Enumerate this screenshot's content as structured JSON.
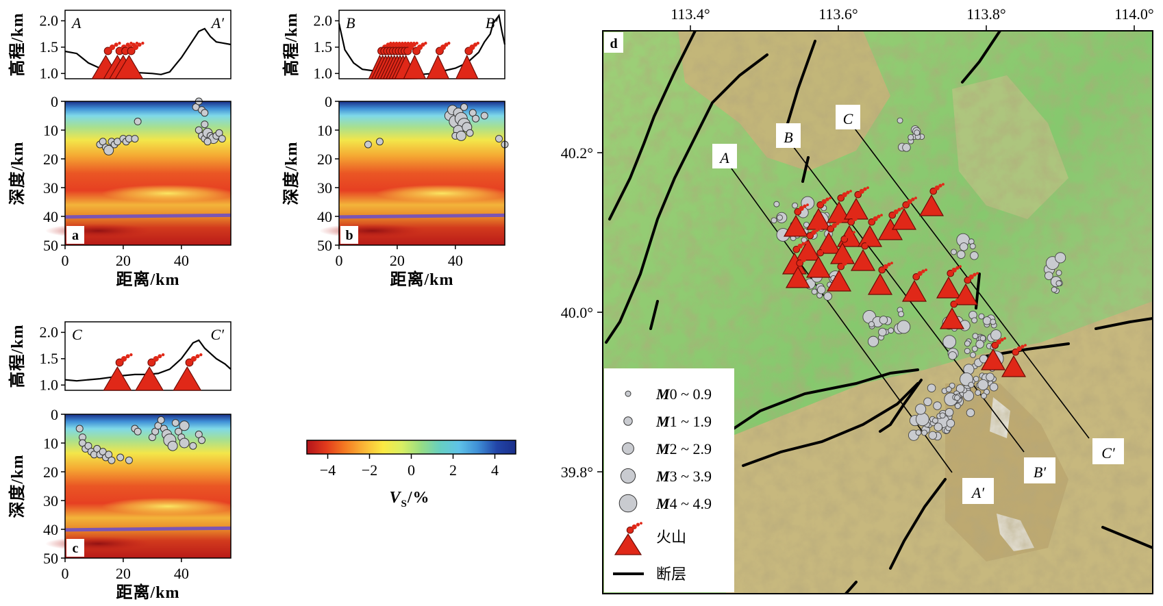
{
  "profiles": [
    {
      "id": "a",
      "panel_label": "a",
      "start": "A",
      "end": "A′",
      "topo": [
        [
          0,
          1.42
        ],
        [
          4,
          1.38
        ],
        [
          8,
          1.2
        ],
        [
          12,
          1.1
        ],
        [
          18,
          1.05
        ],
        [
          24,
          1.02
        ],
        [
          30,
          1.0
        ],
        [
          33,
          0.98
        ],
        [
          36,
          1.03
        ],
        [
          40,
          1.3
        ],
        [
          43,
          1.55
        ],
        [
          46,
          1.8
        ],
        [
          48,
          1.85
        ],
        [
          50,
          1.7
        ],
        [
          52,
          1.6
        ],
        [
          54,
          1.58
        ],
        [
          57,
          1.55
        ]
      ],
      "volcanoes": [
        14,
        18,
        20,
        22
      ],
      "quakes": [
        [
          12,
          15,
          1
        ],
        [
          13,
          14,
          1
        ],
        [
          14,
          16,
          1
        ],
        [
          15,
          17,
          2
        ],
        [
          16,
          14,
          1
        ],
        [
          17,
          15,
          1
        ],
        [
          18,
          14,
          1
        ],
        [
          20,
          13,
          1
        ],
        [
          21,
          14,
          1
        ],
        [
          22,
          13,
          1
        ],
        [
          24,
          13,
          1
        ],
        [
          25,
          7,
          1
        ],
        [
          45,
          2,
          1
        ],
        [
          46,
          0,
          1
        ],
        [
          47,
          3,
          1
        ],
        [
          48,
          4,
          1
        ],
        [
          46,
          10,
          1
        ],
        [
          47,
          12,
          1
        ],
        [
          48,
          13,
          1
        ],
        [
          49,
          11,
          2
        ],
        [
          50,
          12,
          1
        ],
        [
          51,
          13,
          2
        ],
        [
          52,
          12,
          1
        ],
        [
          53,
          11,
          1
        ],
        [
          54,
          13,
          1
        ],
        [
          48,
          8,
          1
        ],
        [
          49,
          14,
          1
        ]
      ]
    },
    {
      "id": "b",
      "panel_label": "b",
      "start": "B",
      "end": "B′",
      "topo": [
        [
          0,
          1.95
        ],
        [
          2,
          1.45
        ],
        [
          5,
          1.2
        ],
        [
          8,
          1.08
        ],
        [
          12,
          1.05
        ],
        [
          16,
          1.02
        ],
        [
          20,
          1.0
        ],
        [
          24,
          1.0
        ],
        [
          28,
          0.98
        ],
        [
          32,
          1.0
        ],
        [
          36,
          1.05
        ],
        [
          40,
          1.1
        ],
        [
          44,
          1.2
        ],
        [
          48,
          1.4
        ],
        [
          50,
          1.6
        ],
        [
          52,
          1.75
        ],
        [
          53,
          1.95
        ],
        [
          55,
          2.1
        ],
        [
          56,
          1.8
        ],
        [
          57,
          1.55
        ]
      ],
      "volcanoes": [
        14,
        15,
        16,
        17,
        18,
        19,
        20,
        21,
        22,
        23,
        26,
        34,
        44
      ],
      "quakes": [
        [
          10,
          15,
          1
        ],
        [
          14,
          14,
          1
        ],
        [
          38,
          5,
          2
        ],
        [
          39,
          3,
          2
        ],
        [
          40,
          7,
          3
        ],
        [
          41,
          4,
          2
        ],
        [
          42,
          6,
          3
        ],
        [
          43,
          8,
          3
        ],
        [
          41,
          10,
          2
        ],
        [
          40,
          12,
          1
        ],
        [
          42,
          12,
          2
        ],
        [
          44,
          9,
          2
        ],
        [
          45,
          11,
          1
        ],
        [
          43,
          2,
          1
        ],
        [
          46,
          4,
          1
        ],
        [
          47,
          6,
          1
        ],
        [
          50,
          5,
          1
        ],
        [
          55,
          13,
          1
        ],
        [
          57,
          15,
          1
        ]
      ]
    },
    {
      "id": "c",
      "panel_label": "c",
      "start": "C",
      "end": "C′",
      "topo": [
        [
          0,
          1.1
        ],
        [
          4,
          1.08
        ],
        [
          8,
          1.1
        ],
        [
          12,
          1.12
        ],
        [
          16,
          1.15
        ],
        [
          20,
          1.18
        ],
        [
          24,
          1.2
        ],
        [
          28,
          1.2
        ],
        [
          32,
          1.22
        ],
        [
          36,
          1.3
        ],
        [
          40,
          1.5
        ],
        [
          42,
          1.65
        ],
        [
          44,
          1.8
        ],
        [
          46,
          1.85
        ],
        [
          48,
          1.7
        ],
        [
          50,
          1.6
        ],
        [
          52,
          1.5
        ],
        [
          55,
          1.4
        ],
        [
          57,
          1.3
        ]
      ],
      "volcanoes": [
        18,
        29,
        42
      ],
      "quakes": [
        [
          5,
          5,
          1
        ],
        [
          6,
          8,
          1
        ],
        [
          6,
          10,
          1
        ],
        [
          7,
          12,
          1
        ],
        [
          8,
          11,
          1
        ],
        [
          9,
          13,
          1
        ],
        [
          10,
          14,
          1
        ],
        [
          11,
          12,
          1
        ],
        [
          12,
          14,
          1
        ],
        [
          13,
          13,
          1
        ],
        [
          14,
          15,
          1
        ],
        [
          15,
          14,
          1
        ],
        [
          16,
          16,
          1
        ],
        [
          19,
          15,
          1
        ],
        [
          22,
          16,
          1
        ],
        [
          24,
          5,
          1
        ],
        [
          25,
          6,
          1
        ],
        [
          30,
          8,
          1
        ],
        [
          31,
          6,
          1
        ],
        [
          32,
          4,
          1
        ],
        [
          33,
          2,
          1
        ],
        [
          34,
          5,
          1
        ],
        [
          35,
          7,
          2
        ],
        [
          36,
          9,
          3
        ],
        [
          37,
          11,
          2
        ],
        [
          38,
          3,
          1
        ],
        [
          39,
          6,
          1
        ],
        [
          40,
          8,
          1
        ],
        [
          41,
          4,
          2
        ],
        [
          41,
          10,
          2
        ],
        [
          44,
          11,
          1
        ],
        [
          46,
          7,
          1
        ],
        [
          47,
          9,
          1
        ]
      ]
    }
  ],
  "profile_axes": {
    "elev_label": "高程/km",
    "elev_ticks": [
      "1.0",
      "1.5",
      "2.0"
    ],
    "depth_label": "深度/km",
    "depth_ticks": [
      "0",
      "10",
      "20",
      "30",
      "40",
      "50"
    ],
    "dist_label": "距离/km",
    "dist_ticks": [
      "0",
      "20",
      "40"
    ]
  },
  "colorbar": {
    "ticks": [
      "−4",
      "−2",
      "0",
      "2",
      "4"
    ],
    "label_main": "V",
    "label_sub": "S",
    "label_unit": "/%",
    "colors": [
      "#b2141b",
      "#e23a1c",
      "#f47a22",
      "#f9b637",
      "#fbe943",
      "#d9ef63",
      "#98dd83",
      "#67cfc0",
      "#5fc3e8",
      "#3f8fd6",
      "#2245a8",
      "#1a2f8a"
    ]
  },
  "map": {
    "panel_label": "d",
    "lon_ticks": [
      "113.4°",
      "113.6°",
      "113.8°",
      "114.0°"
    ],
    "lat_ticks": [
      "40.2°",
      "40.0°",
      "39.8°"
    ],
    "profile_labels": [
      [
        "A",
        "A′"
      ],
      [
        "B",
        "B′"
      ],
      [
        "C",
        "C′"
      ]
    ],
    "legend": [
      {
        "italic": "M",
        "rest": "0 ~ 0.9"
      },
      {
        "italic": "M",
        "rest": "1 ~ 1.9"
      },
      {
        "italic": "M",
        "rest": "2 ~ 2.9"
      },
      {
        "italic": "M",
        "rest": "3 ~ 3.9"
      },
      {
        "italic": "M",
        "rest": "4 ~ 4.9"
      }
    ],
    "legend_volcano": "火山",
    "legend_fault": "断层"
  },
  "colors": {
    "volcano": "#e02818",
    "quake_fill": "#c9cbd0",
    "moho": "#7a55b5",
    "lowland": "#7ec46a",
    "highland": "#c9b77c",
    "fault": "#000000"
  }
}
